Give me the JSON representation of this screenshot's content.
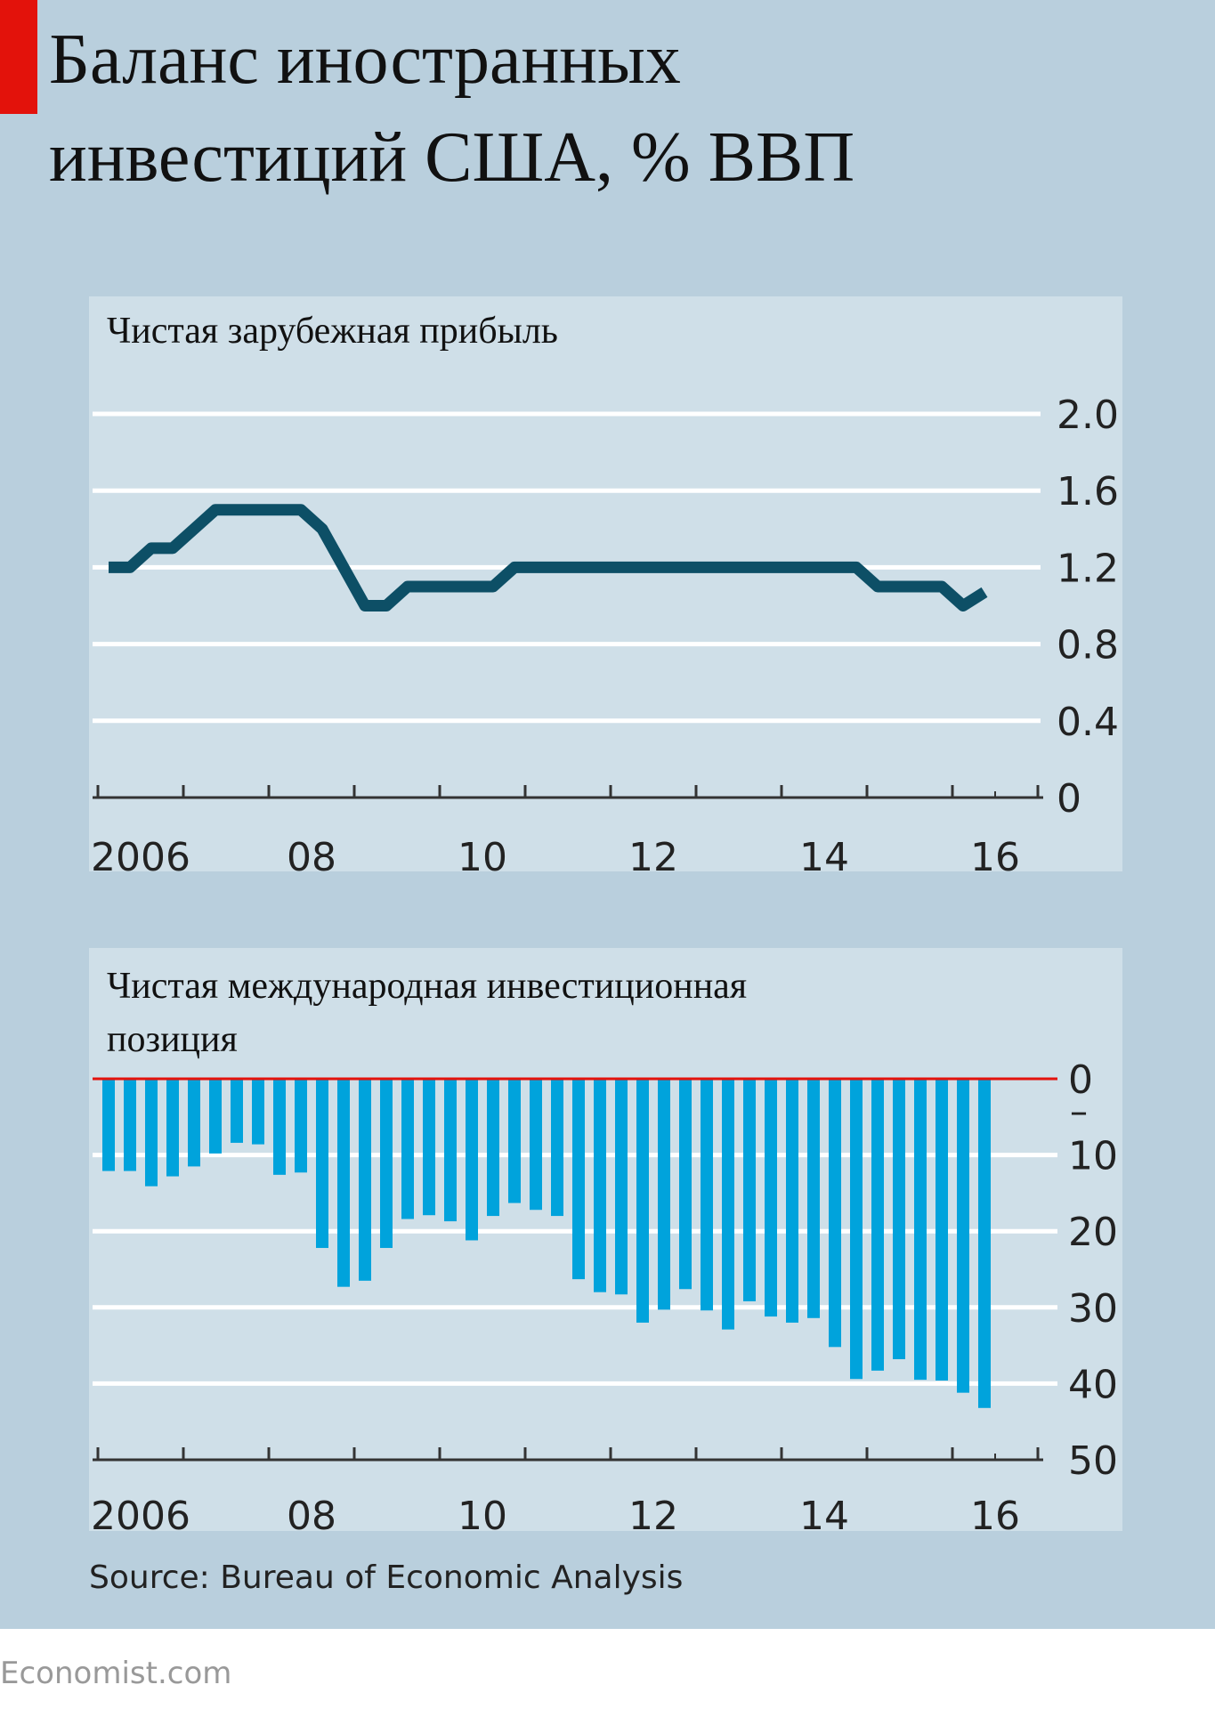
{
  "title_lines": [
    "Баланс иностранных",
    "инвестиций США, % ВВП"
  ],
  "source": "Source: Bureau of Economic Analysis",
  "brand": "Economist.com",
  "colors": {
    "accent": "#e3120b",
    "line": "#0d4f66",
    "bar": "#00a3dc",
    "zero_line": "#e3120b"
  },
  "chart_data": [
    {
      "type": "line",
      "title": "Чистая зарубежная прибыль",
      "xlabel": "",
      "ylabel": "",
      "ylim": [
        0,
        2.0
      ],
      "yticks": [
        "2.0",
        "1.6",
        "1.2",
        "0.8",
        "0.4",
        "0"
      ],
      "ytick_values": [
        2.0,
        1.6,
        1.2,
        0.8,
        0.4,
        0
      ],
      "xticks": [
        "2006",
        "08",
        "10",
        "12",
        "14",
        "16"
      ],
      "x_start": 2006,
      "frequency": "quarterly",
      "values": [
        1.2,
        1.2,
        1.3,
        1.3,
        1.4,
        1.5,
        1.5,
        1.5,
        1.5,
        1.5,
        1.4,
        1.2,
        1.0,
        1.0,
        1.1,
        1.1,
        1.1,
        1.1,
        1.1,
        1.2,
        1.2,
        1.2,
        1.2,
        1.2,
        1.2,
        1.2,
        1.2,
        1.2,
        1.2,
        1.2,
        1.2,
        1.2,
        1.2,
        1.2,
        1.2,
        1.2,
        1.1,
        1.1,
        1.1,
        1.1,
        1.0,
        1.07
      ],
      "grid": true
    },
    {
      "type": "bar",
      "title": "Чистая международная инвестиционная позиция",
      "title_lines": [
        "Чистая международная инвестиционная",
        "позиция"
      ],
      "ylim": [
        -50,
        0
      ],
      "yticks": [
        "0",
        "10",
        "20",
        "30",
        "40",
        "50"
      ],
      "ytick_values": [
        0,
        -10,
        -20,
        -30,
        -40,
        -50
      ],
      "negative_marker": "–",
      "xticks": [
        "2006",
        "08",
        "10",
        "12",
        "14",
        "16"
      ],
      "x_start": 2006,
      "frequency": "quarterly",
      "values": [
        -12.1,
        -12.1,
        -14.1,
        -12.8,
        -11.5,
        -9.8,
        -8.4,
        -8.6,
        -12.6,
        -12.3,
        -22.2,
        -27.3,
        -26.5,
        -22.2,
        -18.4,
        -17.9,
        -18.7,
        -21.2,
        -18.0,
        -16.3,
        -17.2,
        -18.0,
        -26.3,
        -28.0,
        -28.3,
        -32.0,
        -30.3,
        -27.6,
        -30.4,
        -32.9,
        -29.2,
        -31.2,
        -32.0,
        -31.4,
        -35.2,
        -39.4,
        -38.3,
        -36.8,
        -39.5,
        -39.6,
        -41.2,
        -43.2
      ],
      "grid": true
    }
  ]
}
